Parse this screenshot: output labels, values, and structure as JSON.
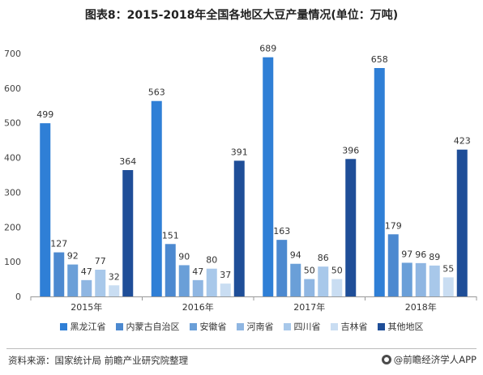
{
  "chart_data": {
    "type": "bar",
    "title": "图表8：2015-2018年全国各地区大豆产量情况(单位：万吨)",
    "categories": [
      "2015年",
      "2016年",
      "2017年",
      "2018年"
    ],
    "series": [
      {
        "name": "黑龙江省",
        "color": "#2F7FD6",
        "values": [
          499,
          563,
          689,
          658
        ]
      },
      {
        "name": "内蒙古自治区",
        "color": "#4C89D0",
        "values": [
          127,
          151,
          163,
          179
        ]
      },
      {
        "name": "安徽省",
        "color": "#6A9FD8",
        "values": [
          92,
          90,
          94,
          97
        ]
      },
      {
        "name": "河南省",
        "color": "#8FB6E2",
        "values": [
          47,
          47,
          50,
          96
        ]
      },
      {
        "name": "四川省",
        "color": "#A8C8EA",
        "values": [
          77,
          80,
          86,
          89
        ]
      },
      {
        "name": "吉林省",
        "color": "#C9DDF2",
        "values": [
          32,
          37,
          50,
          55
        ]
      },
      {
        "name": "其他地区",
        "color": "#1F4E98",
        "values": [
          364,
          391,
          396,
          423
        ]
      }
    ],
    "ylim": [
      0,
      700
    ],
    "yticks": [
      0,
      100,
      200,
      300,
      400,
      500,
      600,
      700
    ],
    "xlabel": "",
    "ylabel": "",
    "legend_position": "bottom",
    "grid": false
  },
  "footer": {
    "source": "资料来源：国家统计局 前瞻产业研究院整理",
    "brand": "@前瞻经济学人APP"
  }
}
